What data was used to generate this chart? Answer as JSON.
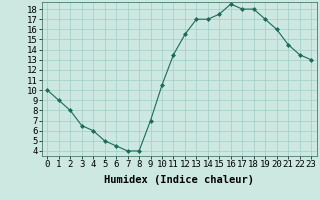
{
  "x": [
    0,
    1,
    2,
    3,
    4,
    5,
    6,
    7,
    8,
    9,
    10,
    11,
    12,
    13,
    14,
    15,
    16,
    17,
    18,
    19,
    20,
    21,
    22,
    23
  ],
  "y": [
    10,
    9,
    8,
    6.5,
    6,
    5,
    4.5,
    4,
    4,
    7,
    10.5,
    13.5,
    15.5,
    17,
    17,
    17.5,
    18.5,
    18,
    18,
    17,
    16,
    14.5,
    13.5,
    13
  ],
  "line_color": "#1a6b5a",
  "marker_color": "#1a6b5a",
  "bg_color": "#cce8e0",
  "grid_color": "#a0cfc7",
  "xlabel": "Humidex (Indice chaleur)",
  "xlim": [
    -0.5,
    23.5
  ],
  "ylim": [
    3.5,
    18.7
  ],
  "yticks": [
    4,
    5,
    6,
    7,
    8,
    9,
    10,
    11,
    12,
    13,
    14,
    15,
    16,
    17,
    18
  ],
  "xticks": [
    0,
    1,
    2,
    3,
    4,
    5,
    6,
    7,
    8,
    9,
    10,
    11,
    12,
    13,
    14,
    15,
    16,
    17,
    18,
    19,
    20,
    21,
    22,
    23
  ],
  "xlabel_fontsize": 7.5,
  "tick_fontsize": 6.5
}
